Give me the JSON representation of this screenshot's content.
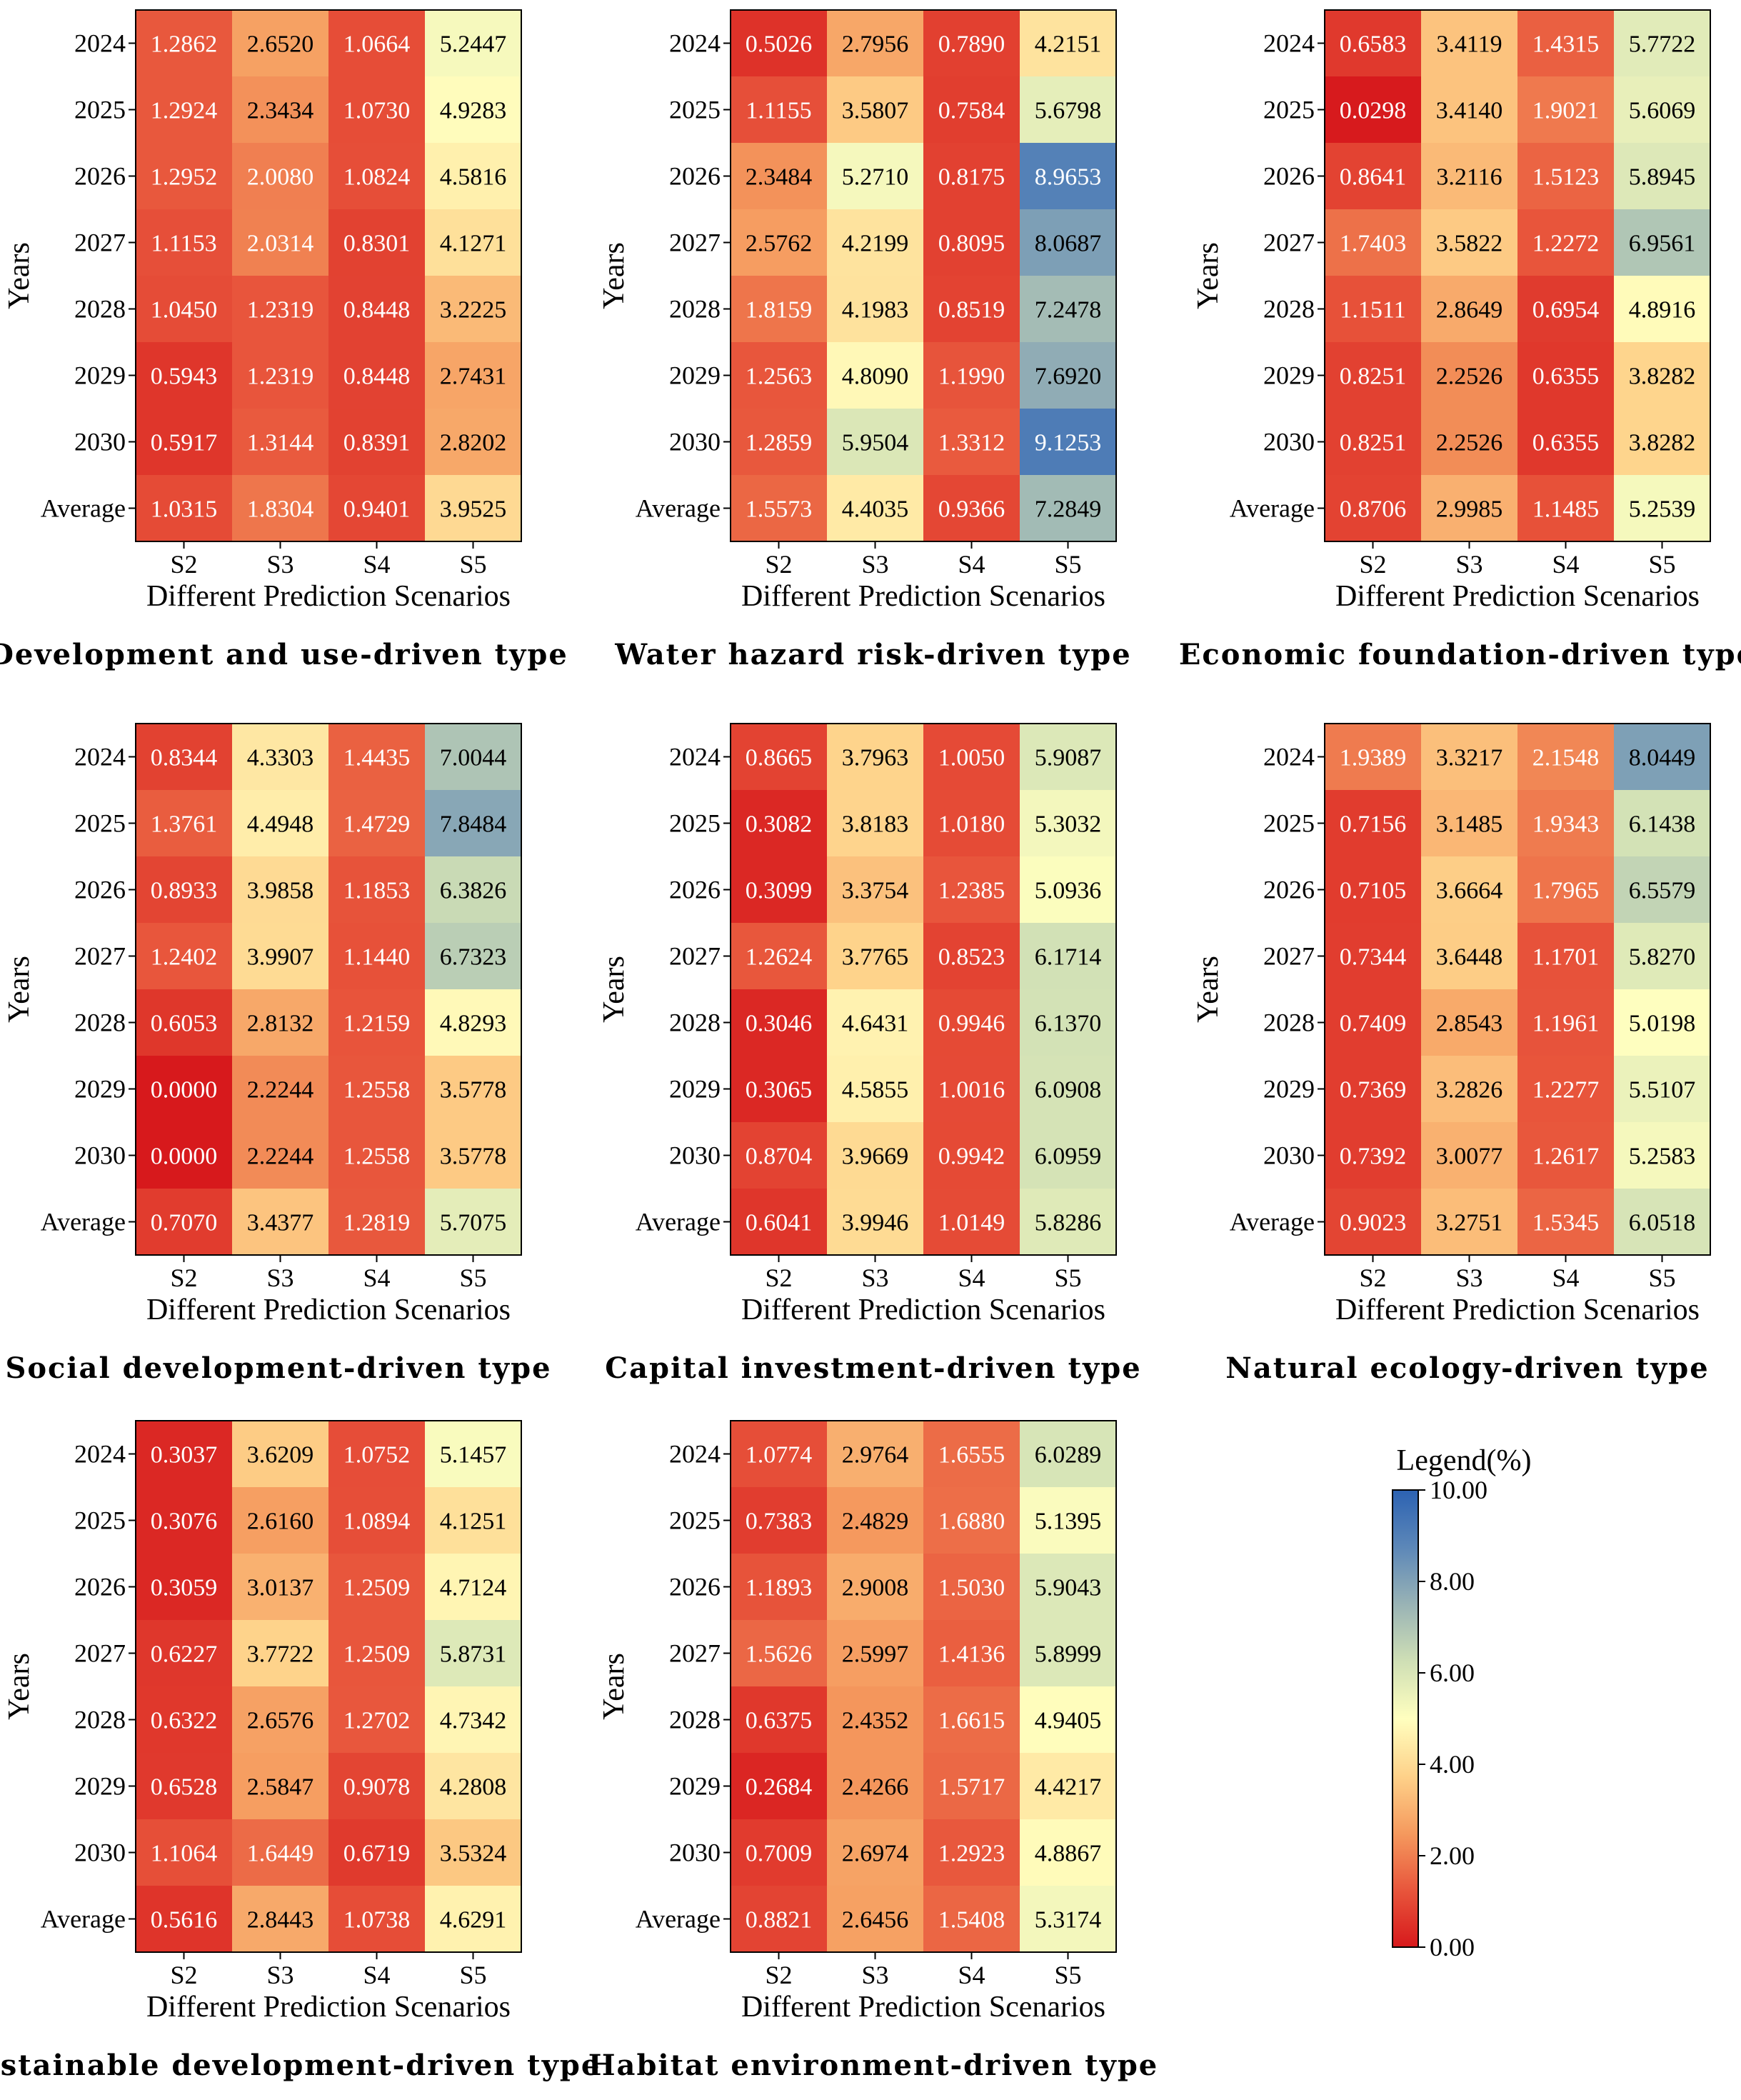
{
  "chart_data": [
    {
      "type": "heatmap",
      "title": "Development and use-driven type",
      "xlabel": "Different Prediction Scenarios",
      "ylabel": "Years",
      "x": [
        "S2",
        "S3",
        "S4",
        "S5"
      ],
      "y": [
        "2024",
        "2025",
        "2026",
        "2027",
        "2028",
        "2029",
        "2030",
        "Average"
      ],
      "values": [
        [
          "1.2862",
          "2.6520",
          "1.0664",
          "5.2447"
        ],
        [
          "1.2924",
          "2.3434",
          "1.0730",
          "4.9283"
        ],
        [
          "1.2952",
          "2.0080",
          "1.0824",
          "4.5816"
        ],
        [
          "1.1153",
          "2.0314",
          "0.8301",
          "4.1271"
        ],
        [
          "1.0450",
          "1.2319",
          "0.8448",
          "3.2225"
        ],
        [
          "0.5943",
          "1.2319",
          "0.8448",
          "2.7431"
        ],
        [
          "0.5917",
          "1.3144",
          "0.8391",
          "2.8202"
        ],
        [
          "1.0315",
          "1.8304",
          "0.9401",
          "3.9525"
        ]
      ]
    },
    {
      "type": "heatmap",
      "title": "Water hazard risk-driven type",
      "xlabel": "Different Prediction Scenarios",
      "ylabel": "Years",
      "x": [
        "S2",
        "S3",
        "S4",
        "S5"
      ],
      "y": [
        "2024",
        "2025",
        "2026",
        "2027",
        "2028",
        "2029",
        "2030",
        "Average"
      ],
      "values": [
        [
          "0.5026",
          "2.7956",
          "0.7890",
          "4.2151"
        ],
        [
          "1.1155",
          "3.5807",
          "0.7584",
          "5.6798"
        ],
        [
          "2.3484",
          "5.2710",
          "0.8175",
          "8.9653"
        ],
        [
          "2.5762",
          "4.2199",
          "0.8095",
          "8.0687"
        ],
        [
          "1.8159",
          "4.1983",
          "0.8519",
          "7.2478"
        ],
        [
          "1.2563",
          "4.8090",
          "1.1990",
          "7.6920"
        ],
        [
          "1.2859",
          "5.9504",
          "1.3312",
          "9.1253"
        ],
        [
          "1.5573",
          "4.4035",
          "0.9366",
          "7.2849"
        ]
      ]
    },
    {
      "type": "heatmap",
      "title": "Economic foundation-driven type",
      "xlabel": "Different Prediction Scenarios",
      "ylabel": "Years",
      "x": [
        "S2",
        "S3",
        "S4",
        "S5"
      ],
      "y": [
        "2024",
        "2025",
        "2026",
        "2027",
        "2028",
        "2029",
        "2030",
        "Average"
      ],
      "values": [
        [
          "0.6583",
          "3.4119",
          "1.4315",
          "5.7722"
        ],
        [
          "0.0298",
          "3.4140",
          "1.9021",
          "5.6069"
        ],
        [
          "0.8641",
          "3.2116",
          "1.5123",
          "5.8945"
        ],
        [
          "1.7403",
          "3.5822",
          "1.2272",
          "6.9561"
        ],
        [
          "1.1511",
          "2.8649",
          "0.6954",
          "4.8916"
        ],
        [
          "0.8251",
          "2.2526",
          "0.6355",
          "3.8282"
        ],
        [
          "0.8251",
          "2.2526",
          "0.6355",
          "3.8282"
        ],
        [
          "0.8706",
          "2.9985",
          "1.1485",
          "5.2539"
        ]
      ]
    },
    {
      "type": "heatmap",
      "title": "Social development-driven type",
      "xlabel": "Different Prediction Scenarios",
      "ylabel": "Years",
      "x": [
        "S2",
        "S3",
        "S4",
        "S5"
      ],
      "y": [
        "2024",
        "2025",
        "2026",
        "2027",
        "2028",
        "2029",
        "2030",
        "Average"
      ],
      "values": [
        [
          "0.8344",
          "4.3303",
          "1.4435",
          "7.0044"
        ],
        [
          "1.3761",
          "4.4948",
          "1.4729",
          "7.8484"
        ],
        [
          "0.8933",
          "3.9858",
          "1.1853",
          "6.3826"
        ],
        [
          "1.2402",
          "3.9907",
          "1.1440",
          "6.7323"
        ],
        [
          "0.6053",
          "2.8132",
          "1.2159",
          "4.8293"
        ],
        [
          "0.0000",
          "2.2244",
          "1.2558",
          "3.5778"
        ],
        [
          "0.0000",
          "2.2244",
          "1.2558",
          "3.5778"
        ],
        [
          "0.7070",
          "3.4377",
          "1.2819",
          "5.7075"
        ]
      ]
    },
    {
      "type": "heatmap",
      "title": "Capital investment-driven type",
      "xlabel": "Different Prediction Scenarios",
      "ylabel": "Years",
      "x": [
        "S2",
        "S3",
        "S4",
        "S5"
      ],
      "y": [
        "2024",
        "2025",
        "2026",
        "2027",
        "2028",
        "2029",
        "2030",
        "Average"
      ],
      "values": [
        [
          "0.8665",
          "3.7963",
          "1.0050",
          "5.9087"
        ],
        [
          "0.3082",
          "3.8183",
          "1.0180",
          "5.3032"
        ],
        [
          "0.3099",
          "3.3754",
          "1.2385",
          "5.0936"
        ],
        [
          "1.2624",
          "3.7765",
          "0.8523",
          "6.1714"
        ],
        [
          "0.3046",
          "4.6431",
          "0.9946",
          "6.1370"
        ],
        [
          "0.3065",
          "4.5855",
          "1.0016",
          "6.0908"
        ],
        [
          "0.8704",
          "3.9669",
          "0.9942",
          "6.0959"
        ],
        [
          "0.6041",
          "3.9946",
          "1.0149",
          "5.8286"
        ]
      ]
    },
    {
      "type": "heatmap",
      "title": "Natural ecology-driven type",
      "xlabel": "Different Prediction Scenarios",
      "ylabel": "Years",
      "x": [
        "S2",
        "S3",
        "S4",
        "S5"
      ],
      "y": [
        "2024",
        "2025",
        "2026",
        "2027",
        "2028",
        "2029",
        "2030",
        "Average"
      ],
      "values": [
        [
          "1.9389",
          "3.3217",
          "2.1548",
          "8.0449"
        ],
        [
          "0.7156",
          "3.1485",
          "1.9343",
          "6.1438"
        ],
        [
          "0.7105",
          "3.6664",
          "1.7965",
          "6.5579"
        ],
        [
          "0.7344",
          "3.6448",
          "1.1701",
          "5.8270"
        ],
        [
          "0.7409",
          "2.8543",
          "1.1961",
          "5.0198"
        ],
        [
          "0.7369",
          "3.2826",
          "1.2277",
          "5.5107"
        ],
        [
          "0.7392",
          "3.0077",
          "1.2617",
          "5.2583"
        ],
        [
          "0.9023",
          "3.2751",
          "1.5345",
          "6.0518"
        ]
      ]
    },
    {
      "type": "heatmap",
      "title": "Sustainable development-driven type",
      "xlabel": "Different Prediction Scenarios",
      "ylabel": "Years",
      "x": [
        "S2",
        "S3",
        "S4",
        "S5"
      ],
      "y": [
        "2024",
        "2025",
        "2026",
        "2027",
        "2028",
        "2029",
        "2030",
        "Average"
      ],
      "values": [
        [
          "0.3037",
          "3.6209",
          "1.0752",
          "5.1457"
        ],
        [
          "0.3076",
          "2.6160",
          "1.0894",
          "4.1251"
        ],
        [
          "0.3059",
          "3.0137",
          "1.2509",
          "4.7124"
        ],
        [
          "0.6227",
          "3.7722",
          "1.2509",
          "5.8731"
        ],
        [
          "0.6322",
          "2.6576",
          "1.2702",
          "4.7342"
        ],
        [
          "0.6528",
          "2.5847",
          "0.9078",
          "4.2808"
        ],
        [
          "1.1064",
          "1.6449",
          "0.6719",
          "3.5324"
        ],
        [
          "0.5616",
          "2.8443",
          "1.0738",
          "4.6291"
        ]
      ]
    },
    {
      "type": "heatmap",
      "title": "Habitat environment-driven type",
      "xlabel": "Different Prediction Scenarios",
      "ylabel": "Years",
      "x": [
        "S2",
        "S3",
        "S4",
        "S5"
      ],
      "y": [
        "2024",
        "2025",
        "2026",
        "2027",
        "2028",
        "2029",
        "2030",
        "Average"
      ],
      "values": [
        [
          "1.0774",
          "2.9764",
          "1.6555",
          "6.0289"
        ],
        [
          "0.7383",
          "2.4829",
          "1.6880",
          "5.1395"
        ],
        [
          "1.1893",
          "2.9008",
          "1.5030",
          "5.9043"
        ],
        [
          "1.5626",
          "2.5997",
          "1.4136",
          "5.8999"
        ],
        [
          "0.6375",
          "2.4352",
          "1.6615",
          "4.9405"
        ],
        [
          "0.2684",
          "2.4266",
          "1.5717",
          "4.4217"
        ],
        [
          "0.7009",
          "2.6974",
          "1.2923",
          "4.8867"
        ],
        [
          "0.8821",
          "2.6456",
          "1.5408",
          "5.3174"
        ]
      ]
    }
  ],
  "legend": {
    "title": "Legend(%)",
    "range": [
      0,
      10
    ],
    "ticks": [
      "0.00",
      "2.00",
      "4.00",
      "6.00",
      "8.00",
      "10.00"
    ]
  },
  "colormap": [
    "#d7191c",
    "#e8563c",
    "#f59a5e",
    "#fed28a",
    "#ffffbf",
    "#cfdfb5",
    "#99b3b5",
    "#5c87b8",
    "#2c62b2"
  ]
}
